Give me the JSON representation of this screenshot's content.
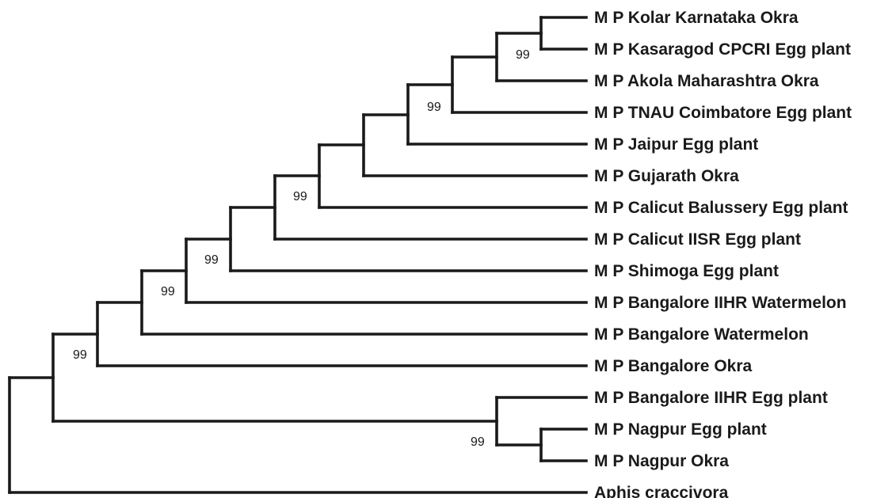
{
  "tree": {
    "taxa": [
      "M P Kolar Karnataka Okra",
      "M P Kasaragod CPCRI Egg plant",
      "M P Akola Maharashtra Okra",
      "M P TNAU Coimbatore Egg plant",
      "M P Jaipur Egg plant",
      "M P Gujarath Okra",
      "M P Calicut Balussery Egg plant",
      "M P Calicut IISR Egg plant",
      "M P Shimoga Egg plant",
      "M P Bangalore IIHR Watermelon",
      "M P Bangalore Watermelon",
      "M P Bangalore Okra",
      "M P Bangalore IIHR Egg plant",
      "M P Nagpur Egg plant",
      "M P Nagpur Okra",
      "Aphis craccivora"
    ],
    "bootstrap": [
      "99",
      "99",
      "99",
      "99",
      "99",
      "99",
      "99"
    ]
  }
}
